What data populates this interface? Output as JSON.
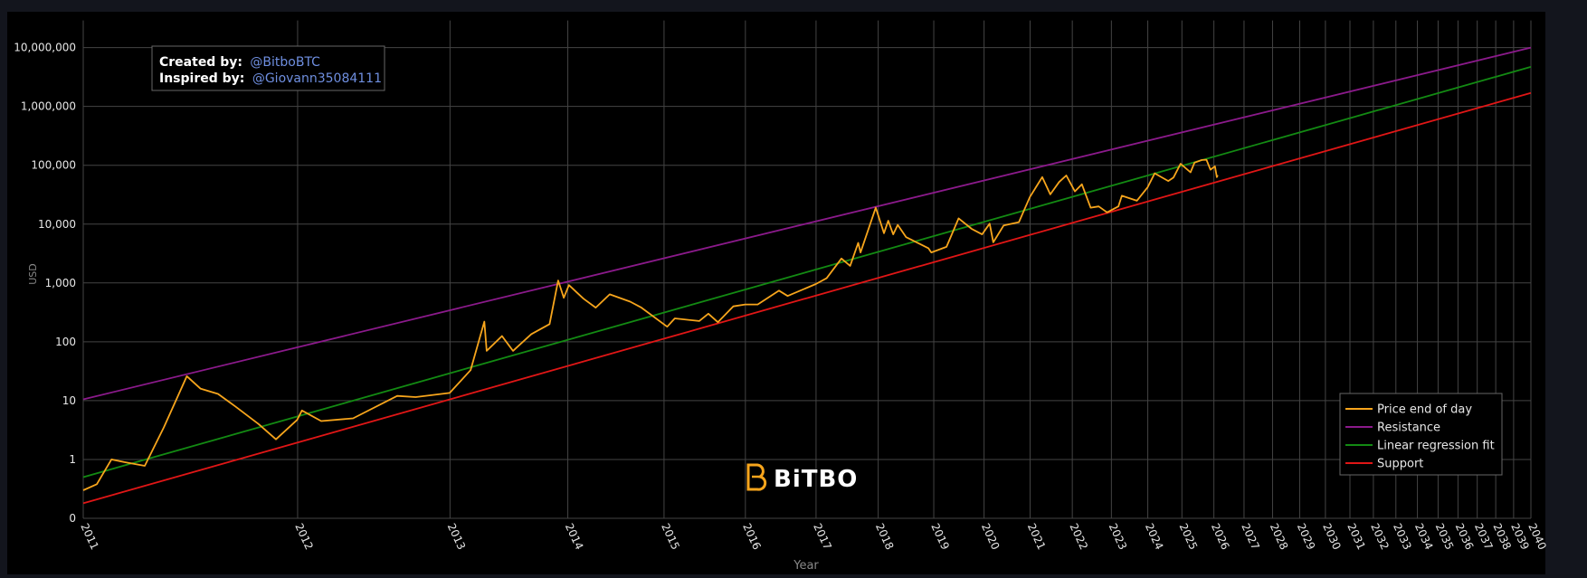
{
  "annotation": {
    "created_label": "Created by:",
    "created_value": "@BitboBTC",
    "inspired_label": "Inspired by:",
    "inspired_value": "@Giovann35084111",
    "link_color": "#6f8fe0"
  },
  "watermark": {
    "text": "BiTBO",
    "icon": "bitbo-b-logo-icon",
    "icon_color": "#f7a51c"
  },
  "colors": {
    "background": "#000000",
    "page": "#13151d",
    "grid": "#444444",
    "text": "#e6e6e6"
  },
  "chart_data": {
    "type": "line",
    "title": "",
    "xlabel": "Year",
    "ylabel": "USD",
    "x_scale": "log (days since genesis block 2009-01-03)",
    "y_scale": "log",
    "ylim": [
      0.1,
      10000000
    ],
    "xlim": [
      "2011-01-01",
      "2040-01-01"
    ],
    "grid": true,
    "legend_position": "bottom-right",
    "y_ticks": [
      {
        "value": 0.1,
        "label": "0"
      },
      {
        "value": 1,
        "label": "1"
      },
      {
        "value": 10,
        "label": "10"
      },
      {
        "value": 100,
        "label": "100"
      },
      {
        "value": 1000,
        "label": "1,000"
      },
      {
        "value": 10000,
        "label": "10,000"
      },
      {
        "value": 100000,
        "label": "100,000"
      },
      {
        "value": 1000000,
        "label": "1,000,000"
      },
      {
        "value": 10000000,
        "label": "10,000,000"
      }
    ],
    "x_ticks": [
      "2011",
      "2012",
      "2013",
      "2014",
      "2015",
      "2016",
      "2017",
      "2018",
      "2019",
      "2020",
      "2021",
      "2022",
      "2023",
      "2024",
      "2025",
      "2026",
      "2027",
      "2028",
      "2029",
      "2030",
      "2031",
      "2032",
      "2033",
      "2034",
      "2035",
      "2036",
      "2037",
      "2038",
      "2039",
      "2040"
    ],
    "series": [
      {
        "name": "Price end of day",
        "color": "#f7a51c",
        "points": [
          [
            "2011-01-01",
            0.3
          ],
          [
            "2011-01-20",
            0.38
          ],
          [
            "2011-02-10",
            1.0
          ],
          [
            "2011-03-01",
            0.9
          ],
          [
            "2011-04-01",
            0.78
          ],
          [
            "2011-05-01",
            3.5
          ],
          [
            "2011-06-08",
            26
          ],
          [
            "2011-07-01",
            16
          ],
          [
            "2011-08-01",
            13
          ],
          [
            "2011-09-01",
            8
          ],
          [
            "2011-10-15",
            4
          ],
          [
            "2011-11-18",
            2.2
          ],
          [
            "2011-12-31",
            4.7
          ],
          [
            "2012-01-10",
            6.8
          ],
          [
            "2012-02-20",
            4.5
          ],
          [
            "2012-05-01",
            5
          ],
          [
            "2012-08-15",
            12
          ],
          [
            "2012-10-01",
            11.5
          ],
          [
            "2012-12-31",
            13.5
          ],
          [
            "2013-02-28",
            33
          ],
          [
            "2013-04-09",
            220
          ],
          [
            "2013-04-16",
            70
          ],
          [
            "2013-06-01",
            125
          ],
          [
            "2013-07-05",
            70
          ],
          [
            "2013-09-01",
            135
          ],
          [
            "2013-10-31",
            200
          ],
          [
            "2013-11-29",
            1100
          ],
          [
            "2013-12-18",
            560
          ],
          [
            "2014-01-05",
            920
          ],
          [
            "2014-02-25",
            540
          ],
          [
            "2014-04-10",
            380
          ],
          [
            "2014-06-01",
            640
          ],
          [
            "2014-08-18",
            480
          ],
          [
            "2014-10-01",
            380
          ],
          [
            "2015-01-14",
            180
          ],
          [
            "2015-02-15",
            250
          ],
          [
            "2015-06-01",
            225
          ],
          [
            "2015-07-12",
            300
          ],
          [
            "2015-08-24",
            215
          ],
          [
            "2015-11-04",
            400
          ],
          [
            "2015-12-31",
            430
          ],
          [
            "2016-03-01",
            430
          ],
          [
            "2016-06-17",
            740
          ],
          [
            "2016-08-01",
            600
          ],
          [
            "2016-12-31",
            960
          ],
          [
            "2017-03-01",
            1200
          ],
          [
            "2017-05-25",
            2600
          ],
          [
            "2017-07-15",
            1950
          ],
          [
            "2017-09-01",
            4800
          ],
          [
            "2017-09-15",
            3300
          ],
          [
            "2017-12-17",
            19000
          ],
          [
            "2018-02-06",
            7000
          ],
          [
            "2018-03-05",
            11400
          ],
          [
            "2018-04-06",
            6700
          ],
          [
            "2018-05-05",
            9700
          ],
          [
            "2018-06-29",
            6000
          ],
          [
            "2018-11-25",
            3900
          ],
          [
            "2018-12-15",
            3300
          ],
          [
            "2019-03-31",
            4100
          ],
          [
            "2019-06-26",
            12500
          ],
          [
            "2019-09-30",
            8300
          ],
          [
            "2019-12-17",
            6700
          ],
          [
            "2020-02-13",
            10200
          ],
          [
            "2020-03-12",
            4900
          ],
          [
            "2020-06-01",
            9500
          ],
          [
            "2020-10-01",
            10800
          ],
          [
            "2020-12-31",
            29000
          ],
          [
            "2021-04-13",
            63000
          ],
          [
            "2021-06-21",
            32000
          ],
          [
            "2021-09-06",
            52000
          ],
          [
            "2021-11-08",
            67000
          ],
          [
            "2022-01-24",
            36000
          ],
          [
            "2022-03-29",
            47500
          ],
          [
            "2022-06-18",
            19000
          ],
          [
            "2022-09-01",
            20000
          ],
          [
            "2022-11-21",
            15800
          ],
          [
            "2023-03-10",
            20000
          ],
          [
            "2023-04-13",
            30300
          ],
          [
            "2023-09-11",
            25000
          ],
          [
            "2023-12-31",
            42500
          ],
          [
            "2024-03-13",
            73000
          ],
          [
            "2024-08-05",
            54000
          ],
          [
            "2024-10-01",
            62000
          ],
          [
            "2024-12-17",
            106000
          ],
          [
            "2025-04-07",
            76000
          ],
          [
            "2025-05-22",
            111000
          ],
          [
            "2025-08-14",
            123000
          ],
          [
            "2025-10-06",
            124000
          ],
          [
            "2025-11-21",
            84000
          ],
          [
            "2026-01-14",
            96000
          ],
          [
            "2026-02-05",
            63000
          ],
          [
            "2026-02-15",
            68000
          ]
        ]
      },
      {
        "name": "Resistance",
        "color": "#8b1a8b",
        "points": [
          [
            "2011-01-01",
            10.5
          ],
          [
            "2040-01-01",
            10000000
          ]
        ]
      },
      {
        "name": "Linear regression fit",
        "color": "#138a13",
        "points": [
          [
            "2011-01-01",
            0.5
          ],
          [
            "2040-01-01",
            4700000
          ]
        ]
      },
      {
        "name": "Support",
        "color": "#e01616",
        "points": [
          [
            "2011-01-01",
            0.18
          ],
          [
            "2040-01-01",
            1700000
          ]
        ]
      }
    ]
  }
}
